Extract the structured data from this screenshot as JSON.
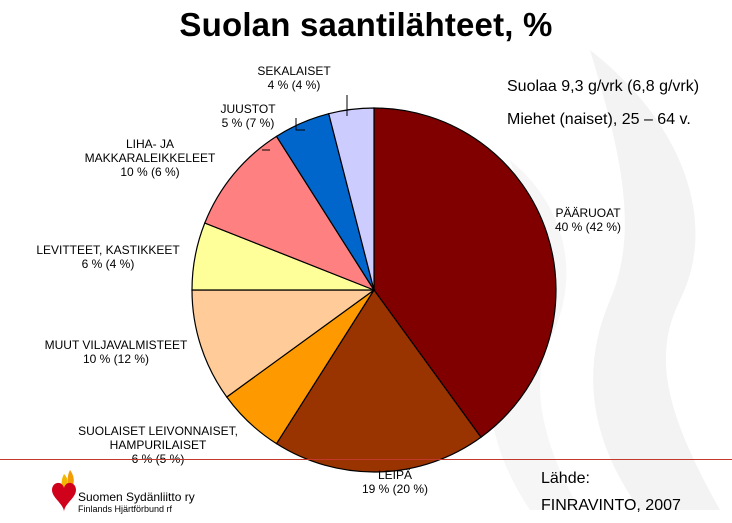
{
  "title": "Suolan saantilähteet, %",
  "notes": {
    "line1": "Suolaa 9,3 g/vrk (6,8 g/vrk)",
    "line2": "Miehet (naiset), 25 – 64 v."
  },
  "footer": {
    "org_name": "Suomen Sydänliitto ry",
    "org_name_sv": "Finlands Hjärtförbund rf",
    "source_label": "Lähde:",
    "source": "FINRAVINTO, 2007"
  },
  "colors": {
    "accent_line": "#c0392b",
    "watermark": "#f3f3f3"
  },
  "chart_data": {
    "type": "pie",
    "title": "Suolan saantilähteet, %",
    "unit": "%",
    "start_angle_deg": 0,
    "direction": "clockwise",
    "slices": [
      {
        "name": "PÄÄRUOAT",
        "label_lines": [
          "PÄÄRUOAT"
        ],
        "value": 40,
        "value_women": 42,
        "value_text": "40 % (42 %)",
        "color": "#800000"
      },
      {
        "name": "LEIPÄ",
        "label_lines": [
          "LEIPÄ"
        ],
        "value": 19,
        "value_women": 20,
        "value_text": "19 % (20 %)",
        "color": "#993300"
      },
      {
        "name": "SUOLAISET LEIVONNAISET, HAMPURILAISET",
        "label_lines": [
          "SUOLAISET LEIVONNAISET,",
          "HAMPURILAISET"
        ],
        "value": 6,
        "value_women": 5,
        "value_text": "6 % (5 %)",
        "color": "#ff9900"
      },
      {
        "name": "MUUT VILJAVALMISTEET",
        "label_lines": [
          "MUUT VILJAVALMISTEET"
        ],
        "value": 10,
        "value_women": 12,
        "value_text": "10 % (12 %)",
        "color": "#ffcc99"
      },
      {
        "name": "LEVITTEET, KASTIKKEET",
        "label_lines": [
          "LEVITTEET, KASTIKKEET"
        ],
        "value": 6,
        "value_women": 4,
        "value_text": "6 % (4 %)",
        "color": "#ffff99"
      },
      {
        "name": "LIHA- JA MAKKARALEIKKELEET",
        "label_lines": [
          "LIHA- JA",
          "MAKKARALEIKKELEET"
        ],
        "value": 10,
        "value_women": 6,
        "value_text": "10 % (6 %)",
        "color": "#ff8080"
      },
      {
        "name": "JUUSTOT",
        "label_lines": [
          "JUUSTOT"
        ],
        "value": 5,
        "value_women": 7,
        "value_text": "5 % (7 %)",
        "color": "#0066cc"
      },
      {
        "name": "SEKALAISET",
        "label_lines": [
          "SEKALAISET"
        ],
        "value": 4,
        "value_women": 4,
        "value_text": "4 % (4 %)",
        "color": "#ccccff"
      }
    ]
  }
}
